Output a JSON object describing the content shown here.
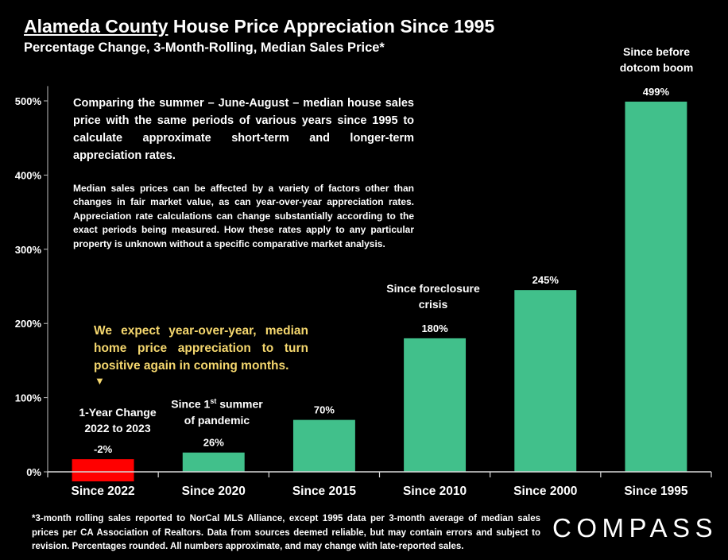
{
  "header": {
    "title_county": "Alameda County",
    "title_rest": " House Price Appreciation Since 1995",
    "subtitle": "Percentage Change, 3-Month-Rolling, Median Sales Price*"
  },
  "notes": {
    "main": "Comparing the summer – June-August – median house sales price with the same periods of various years since 1995 to calculate approximate short-term and longer-term appreciation rates.",
    "detail": "Median sales prices can be affected by a variety of factors other than changes in fair market value, as can year-over-year appreciation rates. Appreciation rate calculations can change substantially according to the exact periods being measured. How these rates apply to any particular property is unknown without a specific comparative market analysis.",
    "callout": "We expect year-over-year, median home price appreciation to turn positive again in coming months.",
    "callout_arrow": "▼"
  },
  "annotations": {
    "one_year_line1": "1-Year Change",
    "one_year_line2": "2022 to 2023",
    "pandemic_pre": "Since 1",
    "pandemic_sup": "st",
    "pandemic_post": " summer",
    "pandemic_line2": "of pandemic",
    "foreclosure_line1": "Since foreclosure",
    "foreclosure_line2": "crisis",
    "dotcom_line1": "Since before",
    "dotcom_line2": "dotcom boom"
  },
  "footnote": "*3-month rolling sales reported to NorCal MLS Alliance, except 1995 data per 3-month average of median sales prices per CA Association of Realtors. Data from sources deemed reliable, but may contain errors and subject to revision. Percentages rounded. All numbers approximate, and may change with late-reported sales.",
  "brand": {
    "logo": "COMPASS"
  },
  "colors": {
    "positive": "#41c08b",
    "negative": "#ff0000",
    "background": "#000000",
    "callout": "#f5d76e"
  },
  "chart_data": {
    "type": "bar",
    "categories": [
      "Since 2022",
      "Since 2020",
      "Since 2015",
      "Since 2010",
      "Since 2000",
      "Since 1995"
    ],
    "values": [
      -2,
      26,
      70,
      180,
      245,
      499
    ],
    "data_labels": [
      "-2%",
      "26%",
      "70%",
      "180%",
      "245%",
      "499%"
    ],
    "yticks": [
      0,
      100,
      200,
      300,
      400,
      500
    ],
    "ytick_labels": [
      "0%",
      "100%",
      "200%",
      "300%",
      "400%",
      "500%"
    ],
    "ylim": [
      -20,
      520
    ],
    "grid": false,
    "negative_bar_display_note": "negative bar drawn as red block at baseline"
  }
}
